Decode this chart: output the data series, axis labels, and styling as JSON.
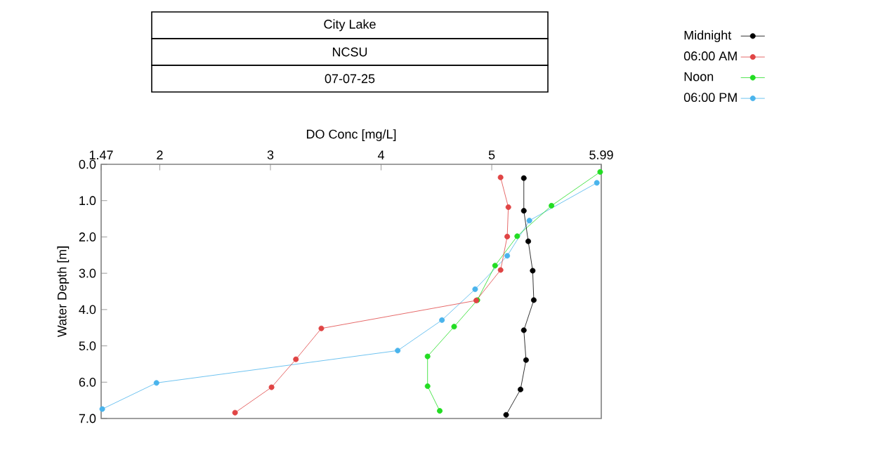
{
  "chart_data": {
    "type": "line",
    "title": "City Lake",
    "subtitle": "NCSU",
    "annotations": [
      "07-07-25"
    ],
    "xlabel": "DO Conc [mg/L]",
    "ylabel": "Water Depth [m]",
    "xlim": [
      1.47,
      5.99
    ],
    "xticks": [
      1.47,
      2,
      3,
      4,
      5,
      5.99
    ],
    "ylim": [
      7,
      0
    ],
    "yticks": [
      {
        "value": 0,
        "label": "0.0"
      },
      {
        "value": 1,
        "label": "1.0"
      },
      {
        "value": 2,
        "label": "2.0"
      },
      {
        "value": 3,
        "label": "3.0"
      },
      {
        "value": 4,
        "label": "4.0"
      },
      {
        "value": 5,
        "label": "5.0"
      },
      {
        "value": 6,
        "label": "6.0"
      },
      {
        "value": 7,
        "label": "7.0"
      }
    ],
    "series": [
      {
        "name": "Midnight",
        "color": "#000000",
        "x": [
          5.29,
          5.29,
          5.33,
          5.37,
          5.38,
          5.29,
          5.31,
          5.26,
          5.13
        ],
        "values": [
          0.38,
          1.28,
          2.12,
          2.93,
          3.74,
          4.57,
          5.39,
          6.2,
          6.9
        ]
      },
      {
        "name": "06:00 AM",
        "color": "#e04444",
        "x": [
          5.08,
          5.15,
          5.14,
          5.08,
          4.86,
          3.46,
          3.23,
          3.01,
          2.68
        ],
        "values": [
          0.36,
          1.18,
          1.99,
          2.91,
          3.75,
          4.52,
          5.37,
          6.14,
          6.84
        ]
      },
      {
        "name": "Noon",
        "color": "#22dd22",
        "x": [
          5.98,
          5.54,
          5.23,
          5.03,
          4.87,
          4.66,
          4.42,
          4.42,
          4.53
        ],
        "values": [
          0.21,
          1.14,
          1.98,
          2.79,
          3.74,
          4.47,
          5.29,
          6.11,
          6.79
        ]
      },
      {
        "name": "06:00 PM",
        "color": "#4ab4ec",
        "x": [
          5.95,
          5.34,
          5.14,
          4.85,
          4.55,
          4.15,
          1.97,
          1.48
        ],
        "values": [
          0.51,
          1.55,
          2.52,
          3.44,
          4.29,
          5.13,
          6.02,
          6.74
        ]
      }
    ],
    "marker": "circle",
    "line_style": "solid",
    "legend": "top right",
    "grid": false
  }
}
